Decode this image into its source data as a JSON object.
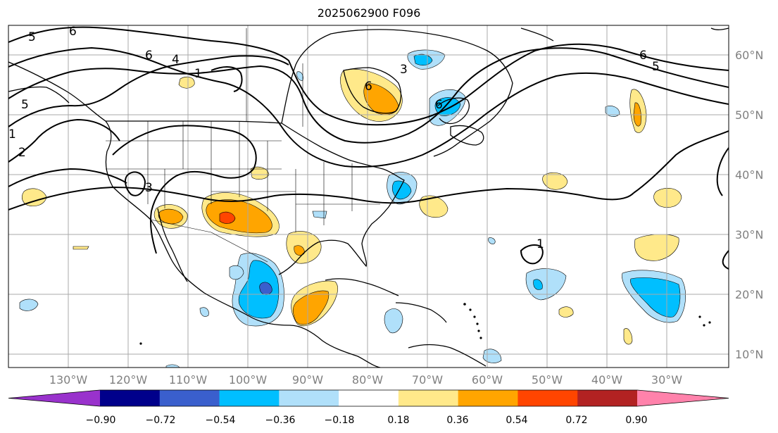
{
  "title": "2025062900 F096",
  "map": {
    "projection": "cylindrical",
    "lon_range": [
      "140°W",
      "20°W"
    ],
    "lat_range": [
      "8°N",
      "65°N"
    ],
    "grid": true,
    "features": [
      "coastlines",
      "country-borders",
      "us-state-borders"
    ],
    "lat_labels": [
      "60°N",
      "50°N",
      "40°N",
      "30°N",
      "20°N",
      "10°N"
    ],
    "lon_labels": [
      "130°W",
      "120°W",
      "110°W",
      "100°W",
      "90°W",
      "80°W",
      "70°W",
      "60°W",
      "50°W",
      "40°W",
      "30°W"
    ],
    "contour_labels": [
      "5",
      "6",
      "6",
      "4",
      "1",
      "5",
      "2",
      "1",
      "3",
      "3",
      "6",
      "6",
      "1",
      "6",
      "5"
    ]
  },
  "colorbar": {
    "orientation": "horizontal",
    "extend": "both",
    "tick_labels": [
      "−0.90",
      "−0.72",
      "−0.54",
      "−0.36",
      "−0.18",
      "0.18",
      "0.36",
      "0.54",
      "0.72",
      "0.90"
    ],
    "colors": [
      "#9932cc",
      "#00008b",
      "#3a5fcd",
      "#00bfff",
      "#b0e0fa",
      "#ffffff",
      "#ffe98a",
      "#ffa500",
      "#ff4500",
      "#b22222",
      "#ff82ab"
    ]
  }
}
